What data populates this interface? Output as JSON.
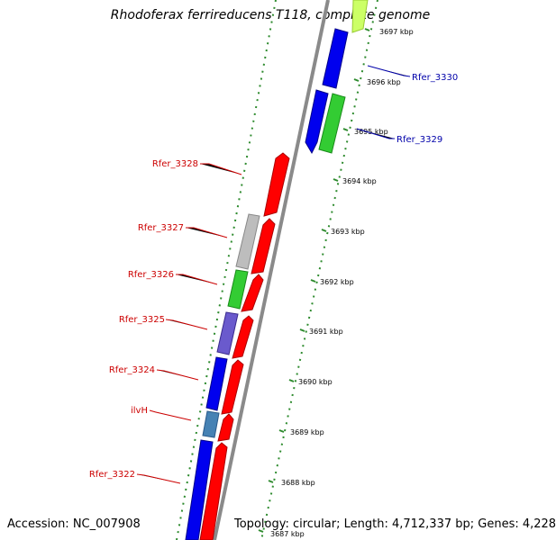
{
  "title": "Rhodoferax ferrireducens T118, complete genome",
  "accession": "Accession: NC_007908",
  "topology": "Topology: circular; Length: 4,712,337 bp; Genes: 4,228",
  "colors": {
    "backbone": "#8a8a8a",
    "ticks": "#2e8b2e",
    "red": "#ff0000",
    "blue": "#0000ee",
    "green": "#33cc33",
    "gray": "#bdbdbd",
    "purple": "#6a5acd",
    "steelblue": "#4682b4",
    "lime": "#ccff66",
    "label_left": "#cc0000",
    "label_right": "#0000aa"
  },
  "scale": {
    "unit": "kbp",
    "labels": [
      "3697 kbp",
      "3696 kbp",
      "3695 kbp",
      "3694 kbp",
      "3693 kbp",
      "3692 kbp",
      "3691 kbp",
      "3690 kbp",
      "3689 kbp",
      "3688 kbp",
      "3687 kbp"
    ]
  },
  "gene_labels_left": [
    "Rfer_3328",
    "Rfer_3327",
    "Rfer_3326",
    "Rfer_3325",
    "Rfer_3324",
    "ilvH",
    "Rfer_3322"
  ],
  "gene_labels_right": [
    "Rfer_3330",
    "Rfer_3329"
  ]
}
